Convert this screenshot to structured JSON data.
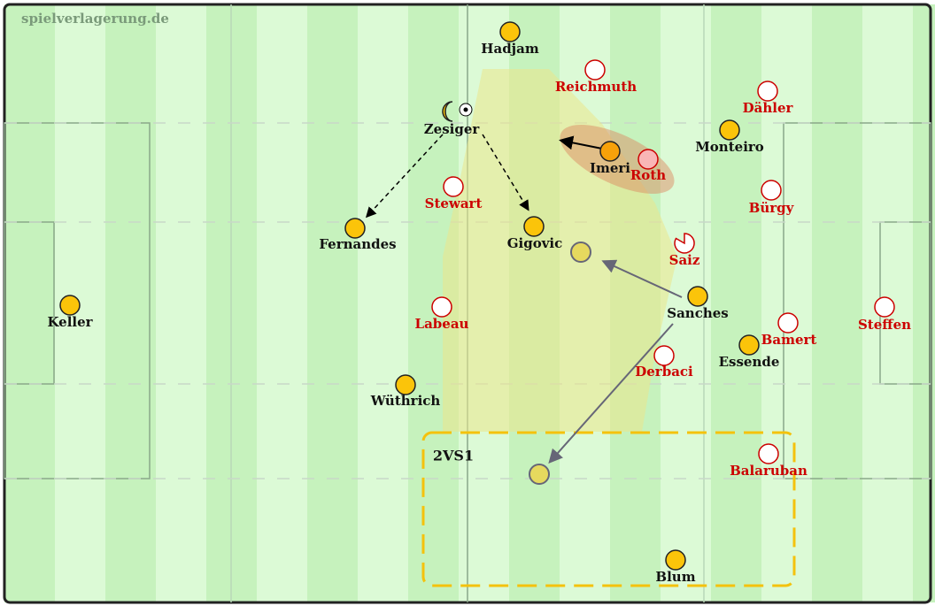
{
  "watermark": "spielverlagerung.de",
  "annotation": "2VS1",
  "team_yellow": [
    "Hadjam",
    "Zesiger",
    "Fernandes",
    "Gigovic",
    "Imeri",
    "Monteiro",
    "Keller",
    "Sanches",
    "Essende",
    "Wüthrich",
    "Blum"
  ],
  "team_red": [
    "Reichmuth",
    "Dähler",
    "Roth",
    "Stewart",
    "Bürgy",
    "Saiz",
    "Labeau",
    "Bamert",
    "Steffen",
    "Derbaci",
    "Balaruban"
  ]
}
